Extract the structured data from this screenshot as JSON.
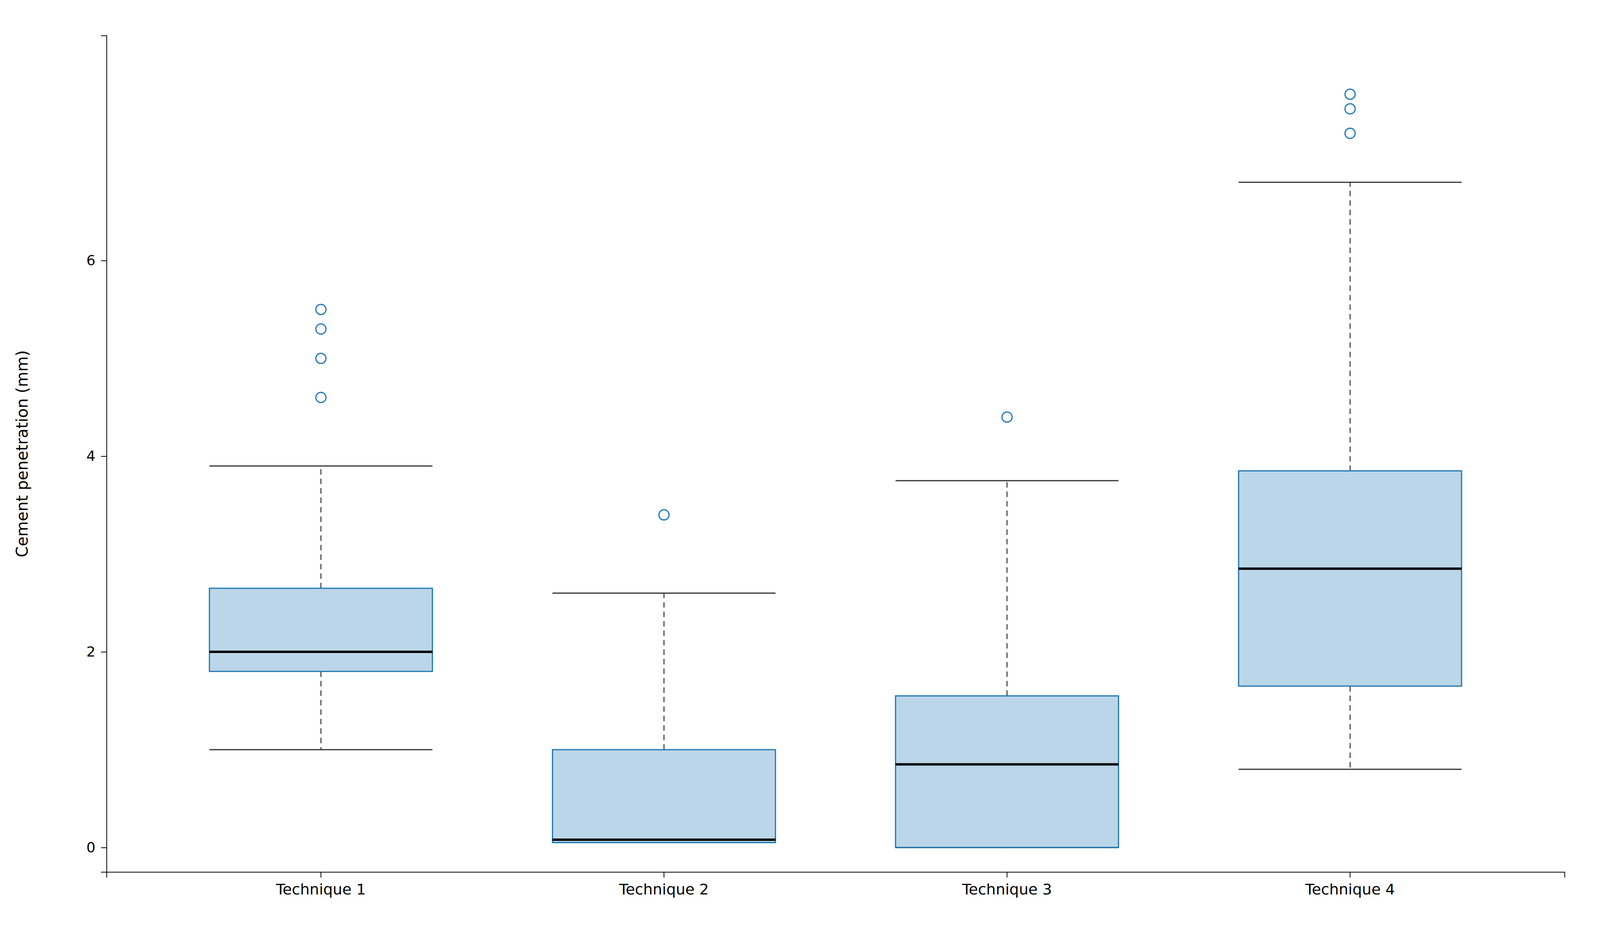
{
  "chart_data": {
    "type": "box",
    "ylabel": "Cement penetration (mm)",
    "categories": [
      "Technique 1",
      "Technique 2",
      "Technique 3",
      "Technique 4"
    ],
    "boxes": [
      {
        "q1": 1.8,
        "median": 2.0,
        "q3": 2.65,
        "whisker_low": 1.0,
        "whisker_high": 3.9,
        "outliers": [
          4.6,
          5.0,
          5.3,
          5.5
        ]
      },
      {
        "q1": 0.05,
        "median": 0.08,
        "q3": 1.0,
        "whisker_low": 0.05,
        "whisker_high": 2.6,
        "outliers": [
          3.4
        ]
      },
      {
        "q1": 0.0,
        "median": 0.85,
        "q3": 1.55,
        "whisker_low": 0.0,
        "whisker_high": 3.75,
        "outliers": [
          4.4
        ]
      },
      {
        "q1": 1.65,
        "median": 2.85,
        "q3": 3.85,
        "whisker_low": 0.8,
        "whisker_high": 6.8,
        "outliers": [
          7.3,
          7.55,
          7.7
        ]
      }
    ],
    "ylim": [
      -0.25,
      8.3
    ],
    "yticks": [
      0,
      2,
      4,
      6
    ],
    "line_style": "dashed",
    "marker": "circle"
  }
}
